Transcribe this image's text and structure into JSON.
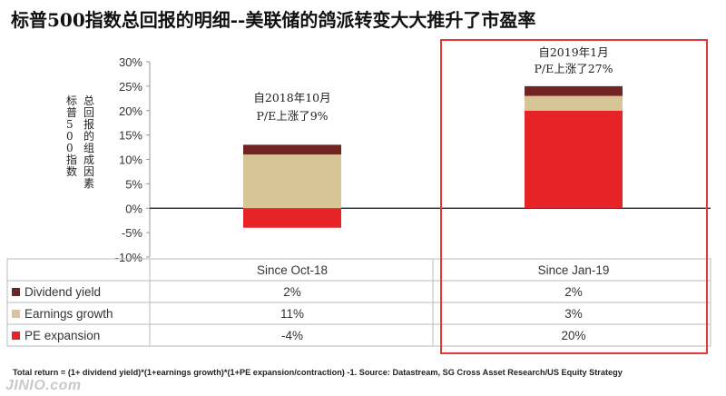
{
  "title": "标普500指数总回报的明细--美联储的鸽派转变大大推升了市盈率",
  "chart_data": {
    "type": "bar",
    "stacked": true,
    "categories": [
      "Since Oct-18",
      "Since Jan-19"
    ],
    "series": [
      {
        "name": "Dividend yield",
        "values": [
          2,
          2
        ],
        "color": "#722422"
      },
      {
        "name": "Earnings growth",
        "values": [
          11,
          3
        ],
        "color": "#d8c597"
      },
      {
        "name": "PE expansion",
        "values": [
          -4,
          20
        ],
        "color": "#e62326"
      }
    ],
    "value_labels": [
      [
        "2%",
        "2%"
      ],
      [
        "11%",
        "3%"
      ],
      [
        "-4%",
        "20%"
      ]
    ],
    "ylim": [
      -10,
      30
    ],
    "yticks": [
      -10,
      -5,
      0,
      5,
      10,
      15,
      20,
      25,
      30
    ],
    "ytick_labels": [
      "-10%",
      "-5%",
      "0%",
      "5%",
      "10%",
      "15%",
      "20%",
      "25%",
      "30%"
    ],
    "ylabel_outer": "标普500指数",
    "ylabel_inner": "总回报的组成因素",
    "annotations": [
      {
        "line1": "自2018年10月",
        "line2": "P/E上涨了9%"
      },
      {
        "line1": "自2019年1月",
        "line2": "P/E上涨了27%"
      }
    ],
    "highlight": {
      "category": "Since Jan-19",
      "color": "#e53935"
    },
    "grid": false,
    "legend": "table-left"
  },
  "footnote": "Total return = (1+ dividend yield)*(1+earnings growth)*(1+PE expansion/contraction) -1. Source: Datastream, SG Cross Asset Research/US Equity Strategy",
  "watermark": "JINIO.com"
}
